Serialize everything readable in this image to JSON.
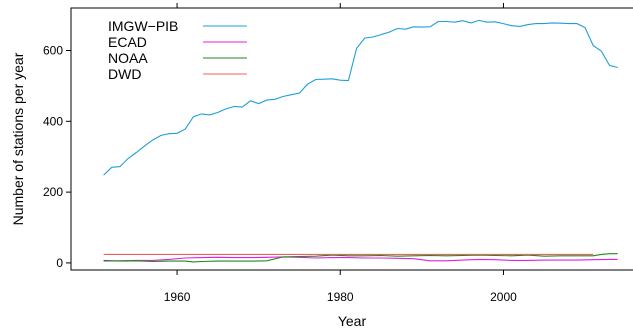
{
  "chart_data": {
    "type": "line",
    "xlabel": "Year",
    "ylabel": "Number of stations per year",
    "xlim": [
      1947,
      2016
    ],
    "ylim": [
      -20,
      720
    ],
    "xticks": [
      1960,
      1980,
      2000
    ],
    "yticks": [
      0,
      200,
      400,
      600
    ],
    "legend_position": "top-left",
    "series": [
      {
        "name": "IMGW−PIB",
        "color": "#1f9fd8",
        "points": [
          [
            1951,
            248
          ],
          [
            1952,
            270
          ],
          [
            1953,
            272
          ],
          [
            1954,
            295
          ],
          [
            1955,
            312
          ],
          [
            1956,
            330
          ],
          [
            1957,
            347
          ],
          [
            1958,
            360
          ],
          [
            1959,
            365
          ],
          [
            1960,
            366
          ],
          [
            1961,
            378
          ],
          [
            1962,
            413
          ],
          [
            1963,
            421
          ],
          [
            1964,
            418
          ],
          [
            1965,
            425
          ],
          [
            1966,
            435
          ],
          [
            1967,
            442
          ],
          [
            1968,
            440
          ],
          [
            1969,
            458
          ],
          [
            1970,
            450
          ],
          [
            1971,
            460
          ],
          [
            1972,
            462
          ],
          [
            1973,
            470
          ],
          [
            1974,
            475
          ],
          [
            1975,
            480
          ],
          [
            1976,
            505
          ],
          [
            1977,
            518
          ],
          [
            1978,
            519
          ],
          [
            1979,
            520
          ],
          [
            1980,
            516
          ],
          [
            1981,
            515
          ],
          [
            1982,
            606
          ],
          [
            1983,
            635
          ],
          [
            1984,
            638
          ],
          [
            1985,
            645
          ],
          [
            1986,
            652
          ],
          [
            1987,
            662
          ],
          [
            1988,
            660
          ],
          [
            1989,
            667
          ],
          [
            1990,
            666
          ],
          [
            1991,
            667
          ],
          [
            1992,
            682
          ],
          [
            1993,
            682
          ],
          [
            1994,
            680
          ],
          [
            1995,
            684
          ],
          [
            1996,
            678
          ],
          [
            1997,
            685
          ],
          [
            1998,
            680
          ],
          [
            1999,
            681
          ],
          [
            2000,
            676
          ],
          [
            2001,
            670
          ],
          [
            2002,
            668
          ],
          [
            2003,
            673
          ],
          [
            2004,
            676
          ],
          [
            2005,
            676
          ],
          [
            2006,
            678
          ],
          [
            2007,
            677
          ],
          [
            2008,
            676
          ],
          [
            2009,
            676
          ],
          [
            2010,
            665
          ],
          [
            2011,
            614
          ],
          [
            2012,
            598
          ],
          [
            2013,
            558
          ],
          [
            2014,
            552
          ]
        ]
      },
      {
        "name": "ECAD",
        "color": "#e020e0",
        "points": [
          [
            1951,
            5
          ],
          [
            1953,
            6
          ],
          [
            1955,
            7
          ],
          [
            1957,
            7
          ],
          [
            1959,
            10
          ],
          [
            1961,
            14
          ],
          [
            1963,
            15
          ],
          [
            1965,
            16
          ],
          [
            1967,
            15
          ],
          [
            1969,
            15
          ],
          [
            1971,
            16
          ],
          [
            1973,
            17
          ],
          [
            1975,
            16
          ],
          [
            1977,
            14
          ],
          [
            1979,
            15
          ],
          [
            1981,
            15
          ],
          [
            1983,
            14
          ],
          [
            1985,
            14
          ],
          [
            1987,
            13
          ],
          [
            1989,
            12
          ],
          [
            1991,
            6
          ],
          [
            1993,
            6
          ],
          [
            1995,
            8
          ],
          [
            1997,
            10
          ],
          [
            1999,
            9
          ],
          [
            2001,
            7
          ],
          [
            2003,
            7
          ],
          [
            2005,
            8
          ],
          [
            2007,
            8
          ],
          [
            2009,
            8
          ],
          [
            2011,
            9
          ],
          [
            2013,
            10
          ],
          [
            2014,
            10
          ]
        ]
      },
      {
        "name": "NOAA",
        "color": "#1e8a1e",
        "points": [
          [
            1951,
            7
          ],
          [
            1953,
            5
          ],
          [
            1955,
            6
          ],
          [
            1957,
            4
          ],
          [
            1959,
            5
          ],
          [
            1961,
            5
          ],
          [
            1962,
            3
          ],
          [
            1963,
            4
          ],
          [
            1965,
            5
          ],
          [
            1967,
            5
          ],
          [
            1969,
            5
          ],
          [
            1971,
            6
          ],
          [
            1973,
            17
          ],
          [
            1975,
            18
          ],
          [
            1977,
            19
          ],
          [
            1979,
            22
          ],
          [
            1981,
            20
          ],
          [
            1983,
            20
          ],
          [
            1985,
            21
          ],
          [
            1987,
            19
          ],
          [
            1989,
            20
          ],
          [
            1991,
            21
          ],
          [
            1993,
            20
          ],
          [
            1995,
            21
          ],
          [
            1997,
            22
          ],
          [
            1999,
            21
          ],
          [
            2001,
            20
          ],
          [
            2003,
            22
          ],
          [
            2005,
            19
          ],
          [
            2007,
            20
          ],
          [
            2009,
            20
          ],
          [
            2011,
            20
          ],
          [
            2012,
            24
          ],
          [
            2013,
            26
          ],
          [
            2014,
            26
          ]
        ]
      },
      {
        "name": "DWD",
        "color": "#f06060",
        "points": [
          [
            1951,
            24
          ],
          [
            1960,
            24
          ],
          [
            1970,
            24
          ],
          [
            1980,
            24
          ],
          [
            1990,
            24
          ],
          [
            2000,
            24
          ],
          [
            2011,
            24
          ]
        ]
      }
    ]
  }
}
